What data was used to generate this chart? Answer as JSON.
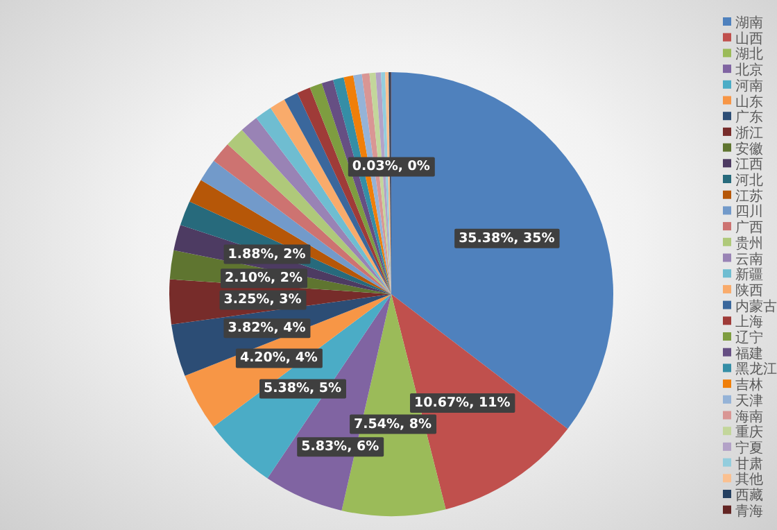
{
  "chart_data": {
    "type": "pie",
    "legend": "right",
    "categories": [
      "湖南",
      "山西",
      "湖北",
      "北京",
      "河南",
      "山东",
      "广东",
      "浙江",
      "安徽",
      "江西",
      "河北",
      "江苏",
      "四川",
      "广西",
      "贵州",
      "云南",
      "新疆",
      "陕西",
      "内蒙古",
      "上海",
      "辽宁",
      "福建",
      "黑龙江",
      "吉林",
      "天津",
      "海南",
      "重庆",
      "宁夏",
      "甘肃",
      "其他",
      "西藏",
      "青海"
    ],
    "values": [
      35.38,
      10.67,
      7.54,
      5.83,
      5.38,
      4.2,
      3.82,
      3.25,
      2.1,
      1.88,
      1.8,
      1.75,
      1.65,
      1.55,
      1.45,
      1.35,
      1.25,
      1.15,
      1.05,
      0.98,
      0.9,
      0.85,
      0.78,
      0.7,
      0.62,
      0.55,
      0.45,
      0.38,
      0.3,
      0.25,
      0.16,
      0.03
    ],
    "colors": [
      "#4f81bd",
      "#c0504d",
      "#9bbb59",
      "#8064a2",
      "#4bacc6",
      "#f79646",
      "#2c4d75",
      "#772c2a",
      "#5f7530",
      "#4d3b62",
      "#276a7c",
      "#b65708",
      "#729aca",
      "#cd7371",
      "#afc97a",
      "#9983b5",
      "#6fbdd1",
      "#f9ab6b",
      "#3a679c",
      "#9f3b38",
      "#7e9d40",
      "#664f83",
      "#358ea6",
      "#f07f09",
      "#95b3d7",
      "#d99694",
      "#c3d69b",
      "#b3a2c7",
      "#93cddd",
      "#fac090",
      "#254061",
      "#632523"
    ],
    "value_labels": [
      "35.38%, 35%",
      "10.67%, 11%",
      "7.54%, 8%",
      "5.83%, 6%",
      "5.38%, 5%",
      "4.20%, 4%",
      "3.82%, 4%",
      "3.25%, 3%",
      "2.10%, 2%",
      "1.88%, 2%",
      null,
      null,
      null,
      null,
      null,
      null,
      null,
      null,
      null,
      null,
      null,
      null,
      null,
      null,
      null,
      null,
      null,
      null,
      null,
      null,
      null,
      "0.03%, 0%"
    ]
  }
}
